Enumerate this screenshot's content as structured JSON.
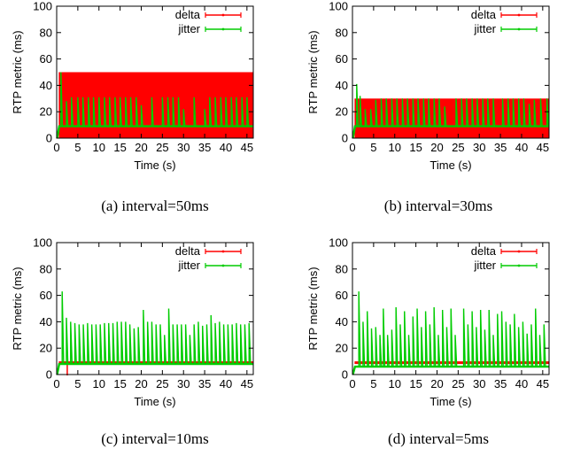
{
  "figure": {
    "captions": [
      "(a)  interval=50ms",
      "(b)  interval=30ms",
      "(c)  interval=10ms",
      "(d)  interval=5ms"
    ]
  },
  "colors": {
    "delta": "#ff0000",
    "jitter": "#00cc00",
    "axis": "#000000"
  },
  "chart_data": [
    {
      "type": "line",
      "xlabel": "Time (s)",
      "ylabel": "RTP metric (ms)",
      "xticks": [
        0,
        5,
        10,
        15,
        20,
        25,
        30,
        35,
        40,
        45
      ],
      "yticks": [
        0,
        20,
        40,
        60,
        80,
        100
      ],
      "xlim": [
        0,
        46.5
      ],
      "ylim": [
        0,
        100
      ],
      "legend_position": "top-right",
      "series": [
        {
          "name": "delta",
          "band": [
            0,
            50
          ],
          "drop": []
        },
        {
          "name": "jitter",
          "baseline": 9,
          "spikes": [
            [
              1,
              50
            ],
            [
              2.3,
              28
            ],
            [
              3.5,
              31
            ],
            [
              5,
              31
            ],
            [
              6.2,
              31
            ],
            [
              7.5,
              31
            ],
            [
              8.7,
              31
            ],
            [
              10,
              31
            ],
            [
              11.3,
              31
            ],
            [
              12.5,
              31
            ],
            [
              13.8,
              31
            ],
            [
              15,
              31
            ],
            [
              16.3,
              31
            ],
            [
              17.5,
              31
            ],
            [
              18.8,
              31
            ],
            [
              20,
              25
            ],
            [
              22.5,
              31
            ],
            [
              25,
              31
            ],
            [
              26.3,
              31
            ],
            [
              27.5,
              31
            ],
            [
              28.8,
              31
            ],
            [
              30,
              22
            ],
            [
              32.5,
              31
            ],
            [
              35,
              22
            ],
            [
              36.2,
              31
            ],
            [
              37.5,
              31
            ],
            [
              38.8,
              31
            ],
            [
              40,
              31
            ],
            [
              41.3,
              31
            ],
            [
              42.5,
              31
            ],
            [
              43.8,
              31
            ],
            [
              45,
              31
            ]
          ]
        }
      ]
    },
    {
      "type": "line",
      "xlabel": "Time (s)",
      "ylabel": "RTP metric (ms)",
      "xticks": [
        0,
        5,
        10,
        15,
        20,
        25,
        30,
        35,
        40,
        45
      ],
      "yticks": [
        0,
        20,
        40,
        60,
        80,
        100
      ],
      "xlim": [
        0,
        46.5
      ],
      "ylim": [
        0,
        100
      ],
      "legend_position": "top-right",
      "series": [
        {
          "name": "delta",
          "band": [
            0,
            30
          ],
          "drop": []
        },
        {
          "name": "jitter",
          "baseline": 9,
          "spikes": [
            [
              1,
              41
            ],
            [
              1.8,
              32
            ],
            [
              3,
              22
            ],
            [
              4.3,
              22
            ],
            [
              5.5,
              29
            ],
            [
              6.8,
              30
            ],
            [
              8,
              30
            ],
            [
              9.3,
              30
            ],
            [
              10.5,
              30
            ],
            [
              11.8,
              30
            ],
            [
              13,
              30
            ],
            [
              14.3,
              30
            ],
            [
              15.5,
              30
            ],
            [
              16.8,
              30
            ],
            [
              18,
              30
            ],
            [
              19.3,
              30
            ],
            [
              20.5,
              30
            ],
            [
              21.8,
              24
            ],
            [
              24.5,
              30
            ],
            [
              25.8,
              30
            ],
            [
              27,
              30
            ],
            [
              28.3,
              30
            ],
            [
              29.5,
              30
            ],
            [
              30.8,
              30
            ],
            [
              32,
              30
            ],
            [
              33.3,
              30
            ],
            [
              35.5,
              30
            ],
            [
              36.8,
              30
            ],
            [
              38,
              30
            ],
            [
              39.3,
              30
            ],
            [
              40.5,
              30
            ],
            [
              41.8,
              26
            ],
            [
              43,
              29
            ],
            [
              44.5,
              30
            ],
            [
              46,
              30
            ]
          ]
        }
      ]
    },
    {
      "type": "line",
      "xlabel": "Time (s)",
      "ylabel": "RTP metric (ms)",
      "xticks": [
        0,
        5,
        10,
        15,
        20,
        25,
        30,
        35,
        40,
        45
      ],
      "yticks": [
        0,
        20,
        40,
        60,
        80,
        100
      ],
      "xlim": [
        0,
        46.5
      ],
      "ylim": [
        0,
        100
      ],
      "legend_position": "top-right",
      "series": [
        {
          "name": "delta",
          "band": [
            8,
            10
          ],
          "drop": [
            2.5
          ]
        },
        {
          "name": "jitter",
          "baseline": 8,
          "spikes": [
            [
              1.3,
              63
            ],
            [
              2.3,
              43
            ],
            [
              3.3,
              40
            ],
            [
              4.3,
              39
            ],
            [
              5.3,
              38
            ],
            [
              6.3,
              38
            ],
            [
              7.3,
              39
            ],
            [
              8.3,
              38
            ],
            [
              9.3,
              38
            ],
            [
              10.3,
              38
            ],
            [
              11.3,
              39
            ],
            [
              12.3,
              39
            ],
            [
              13.3,
              39
            ],
            [
              14.3,
              40
            ],
            [
              15.3,
              40
            ],
            [
              16.3,
              40
            ],
            [
              17.3,
              38
            ],
            [
              18.3,
              35
            ],
            [
              19.3,
              36
            ],
            [
              20.5,
              49
            ],
            [
              21.5,
              40
            ],
            [
              22.5,
              40
            ],
            [
              23.5,
              38
            ],
            [
              24.5,
              38
            ],
            [
              25.5,
              30
            ],
            [
              26.5,
              50
            ],
            [
              27.5,
              38
            ],
            [
              28.5,
              38
            ],
            [
              29.5,
              38
            ],
            [
              30.5,
              38
            ],
            [
              31.5,
              30
            ],
            [
              32.5,
              38
            ],
            [
              33.5,
              40
            ],
            [
              34.5,
              37
            ],
            [
              35.5,
              38
            ],
            [
              36.5,
              45
            ],
            [
              37.5,
              39
            ],
            [
              38.5,
              40
            ],
            [
              39.5,
              38
            ],
            [
              40.5,
              38
            ],
            [
              41.5,
              38
            ],
            [
              42.5,
              39
            ],
            [
              43.5,
              38
            ],
            [
              44.5,
              38
            ],
            [
              45.5,
              39
            ]
          ]
        }
      ]
    },
    {
      "type": "line",
      "xlabel": "Time (s)",
      "ylabel": "RTP metric (ms)",
      "xticks": [
        0,
        5,
        10,
        15,
        20,
        25,
        30,
        35,
        40,
        45
      ],
      "yticks": [
        0,
        20,
        40,
        60,
        80,
        100
      ],
      "xlim": [
        0,
        46.5
      ],
      "ylim": [
        0,
        100
      ],
      "legend_position": "top-right",
      "series": [
        {
          "name": "delta",
          "band": [
            8,
            10
          ],
          "drop": []
        },
        {
          "name": "jitter",
          "baseline": 6,
          "spikes": [
            [
              1.5,
              63
            ],
            [
              2.5,
              40
            ],
            [
              3.5,
              48
            ],
            [
              4.5,
              35
            ],
            [
              5.5,
              36
            ],
            [
              6.5,
              30
            ],
            [
              7.3,
              50
            ],
            [
              8.3,
              30
            ],
            [
              9.3,
              34
            ],
            [
              10.3,
              51
            ],
            [
              11.3,
              38
            ],
            [
              12.3,
              48
            ],
            [
              13.3,
              30
            ],
            [
              14.3,
              44
            ],
            [
              15.3,
              50
            ],
            [
              16.3,
              36
            ],
            [
              17.3,
              48
            ],
            [
              18.3,
              38
            ],
            [
              19.3,
              51
            ],
            [
              20.3,
              30
            ],
            [
              21.3,
              49
            ],
            [
              22.3,
              36
            ],
            [
              23.3,
              50
            ],
            [
              24.3,
              30
            ],
            [
              26.3,
              50
            ],
            [
              27.3,
              38
            ],
            [
              28.3,
              48
            ],
            [
              29.3,
              36
            ],
            [
              30.3,
              49
            ],
            [
              31.3,
              34
            ],
            [
              32.3,
              49
            ],
            [
              33.3,
              30
            ],
            [
              34.3,
              46
            ],
            [
              35.3,
              48
            ],
            [
              36.3,
              40
            ],
            [
              37.3,
              38
            ],
            [
              38.3,
              46
            ],
            [
              39.3,
              36
            ],
            [
              40.3,
              40
            ],
            [
              41.3,
              31
            ],
            [
              42.3,
              38
            ],
            [
              43.3,
              50
            ],
            [
              44.3,
              30
            ],
            [
              45.3,
              38
            ]
          ]
        }
      ]
    }
  ]
}
